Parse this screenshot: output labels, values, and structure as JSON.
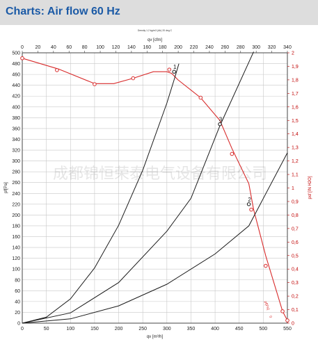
{
  "header": {
    "title": "Charts: Air flow 60 Hz"
  },
  "watermark": "成都锦恒荣泰电气设备有限公司",
  "colors": {
    "grid": "#c8c8c8",
    "curve": "#1a1a1a",
    "fan": "#d82b2b",
    "right_axis": "#c00000",
    "title": "#1b5aa6",
    "header_bg": "#dddddd"
  },
  "chart_data": {
    "type": "line",
    "title": "Density 1.2 kg/m3 (Air) 20 deg C",
    "xlabel_bottom": "qv [m³/h]",
    "xlabel_top": "qv [cfm]",
    "ylabel_left": "pf[Pa]",
    "ylabel_right": "psf [IN H2O]",
    "xlim": [
      0,
      550
    ],
    "ylim": [
      0,
      500
    ],
    "x_top_lim": [
      0,
      340
    ],
    "y_right_lim": [
      0,
      2
    ],
    "x_ticks": [
      0,
      50,
      100,
      150,
      200,
      250,
      300,
      350,
      400,
      450,
      500,
      550
    ],
    "x_top_ticks": [
      0,
      20,
      40,
      60,
      80,
      100,
      120,
      140,
      160,
      180,
      200,
      220,
      240,
      260,
      280,
      300,
      320,
      340
    ],
    "y_ticks": [
      0,
      20,
      40,
      60,
      80,
      100,
      120,
      140,
      160,
      180,
      200,
      220,
      240,
      260,
      280,
      300,
      320,
      340,
      360,
      380,
      400,
      420,
      440,
      460,
      480,
      500
    ],
    "y_right_ticks": [
      "0",
      "0,1",
      "0,2",
      "0,3",
      "0,4",
      "0,5",
      "0,6",
      "0,7",
      "0,8",
      "0,9",
      "1",
      "1,1",
      "1,2",
      "1,3",
      "1,4",
      "1,5",
      "1,6",
      "1,7",
      "1,8",
      "1,9",
      "2"
    ],
    "grid": true,
    "series": [
      {
        "values": [
          [
            0,
            490
          ],
          [
            75,
            470
          ],
          [
            150,
            443
          ],
          [
            190,
            443
          ],
          [
            230,
            453
          ],
          [
            272,
            465
          ],
          [
            300,
            465
          ],
          [
            310,
            462
          ],
          [
            323,
            450
          ],
          [
            370,
            417
          ],
          [
            410,
            375
          ],
          [
            435,
            323
          ],
          [
            470,
            258
          ],
          [
            480,
            210
          ],
          [
            505,
            125
          ],
          [
            540,
            22
          ],
          [
            550,
            5
          ]
        ]
      },
      {
        "values": [
          [
            0,
            0
          ],
          [
            50,
            11
          ],
          [
            100,
            45
          ],
          [
            150,
            102
          ],
          [
            200,
            181
          ],
          [
            250,
            283
          ],
          [
            300,
            407
          ],
          [
            315,
            450
          ],
          [
            325,
            480
          ]
        ]
      },
      {
        "values": [
          [
            0,
            0
          ],
          [
            100,
            19
          ],
          [
            200,
            75
          ],
          [
            300,
            170
          ],
          [
            350,
            231
          ],
          [
            410,
            365
          ],
          [
            480,
            502
          ]
        ]
      },
      {
        "values": [
          [
            0,
            0
          ],
          [
            100,
            8
          ],
          [
            200,
            32
          ],
          [
            300,
            72
          ],
          [
            400,
            128
          ],
          [
            470,
            180
          ],
          [
            550,
            315
          ]
        ]
      }
    ],
    "fan_markers": [
      [
        0,
        490
      ],
      [
        72,
        468
      ],
      [
        150,
        442
      ],
      [
        230,
        453
      ],
      [
        305,
        469
      ],
      [
        370,
        417
      ],
      [
        435,
        313
      ],
      [
        475,
        210
      ],
      [
        505,
        106
      ],
      [
        540,
        22
      ],
      [
        550,
        5
      ]
    ],
    "operating_points": [
      {
        "label": "1",
        "x": 315,
        "y": 465
      },
      {
        "label": "3",
        "x": 410,
        "y": 368
      },
      {
        "label": "2",
        "x": 470,
        "y": 220
      }
    ],
    "curve_end_labels": [
      "pf[Pa]",
      "0"
    ]
  }
}
